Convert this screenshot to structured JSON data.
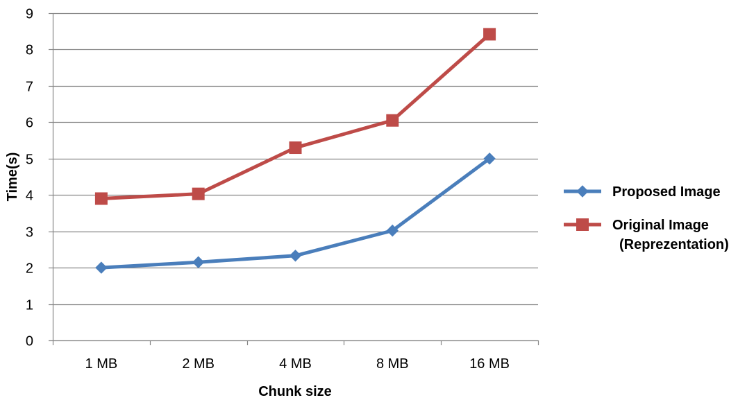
{
  "chart_data": {
    "type": "line",
    "title": "",
    "xlabel": "Chunk size",
    "ylabel": "Time(s)",
    "categories": [
      "1 MB",
      "2 MB",
      "4 MB",
      "8 MB",
      "16 MB"
    ],
    "ylim": [
      0,
      9
    ],
    "yticks": [
      0,
      1,
      2,
      3,
      4,
      5,
      6,
      7,
      8,
      9
    ],
    "grid": true,
    "legend_position": "right",
    "series": [
      {
        "name": "Proposed Image",
        "legend_lines": [
          "Proposed Image"
        ],
        "values": [
          2.0,
          2.15,
          2.33,
          3.02,
          5.0
        ],
        "color": "#4a7ebb",
        "marker": "diamond"
      },
      {
        "name": "Original Image (Reprezentation)",
        "legend_lines": [
          "Original Image",
          "(Reprezentation)"
        ],
        "values": [
          3.9,
          4.03,
          5.3,
          6.05,
          8.42
        ],
        "color": "#be4b48",
        "marker": "square"
      }
    ]
  }
}
